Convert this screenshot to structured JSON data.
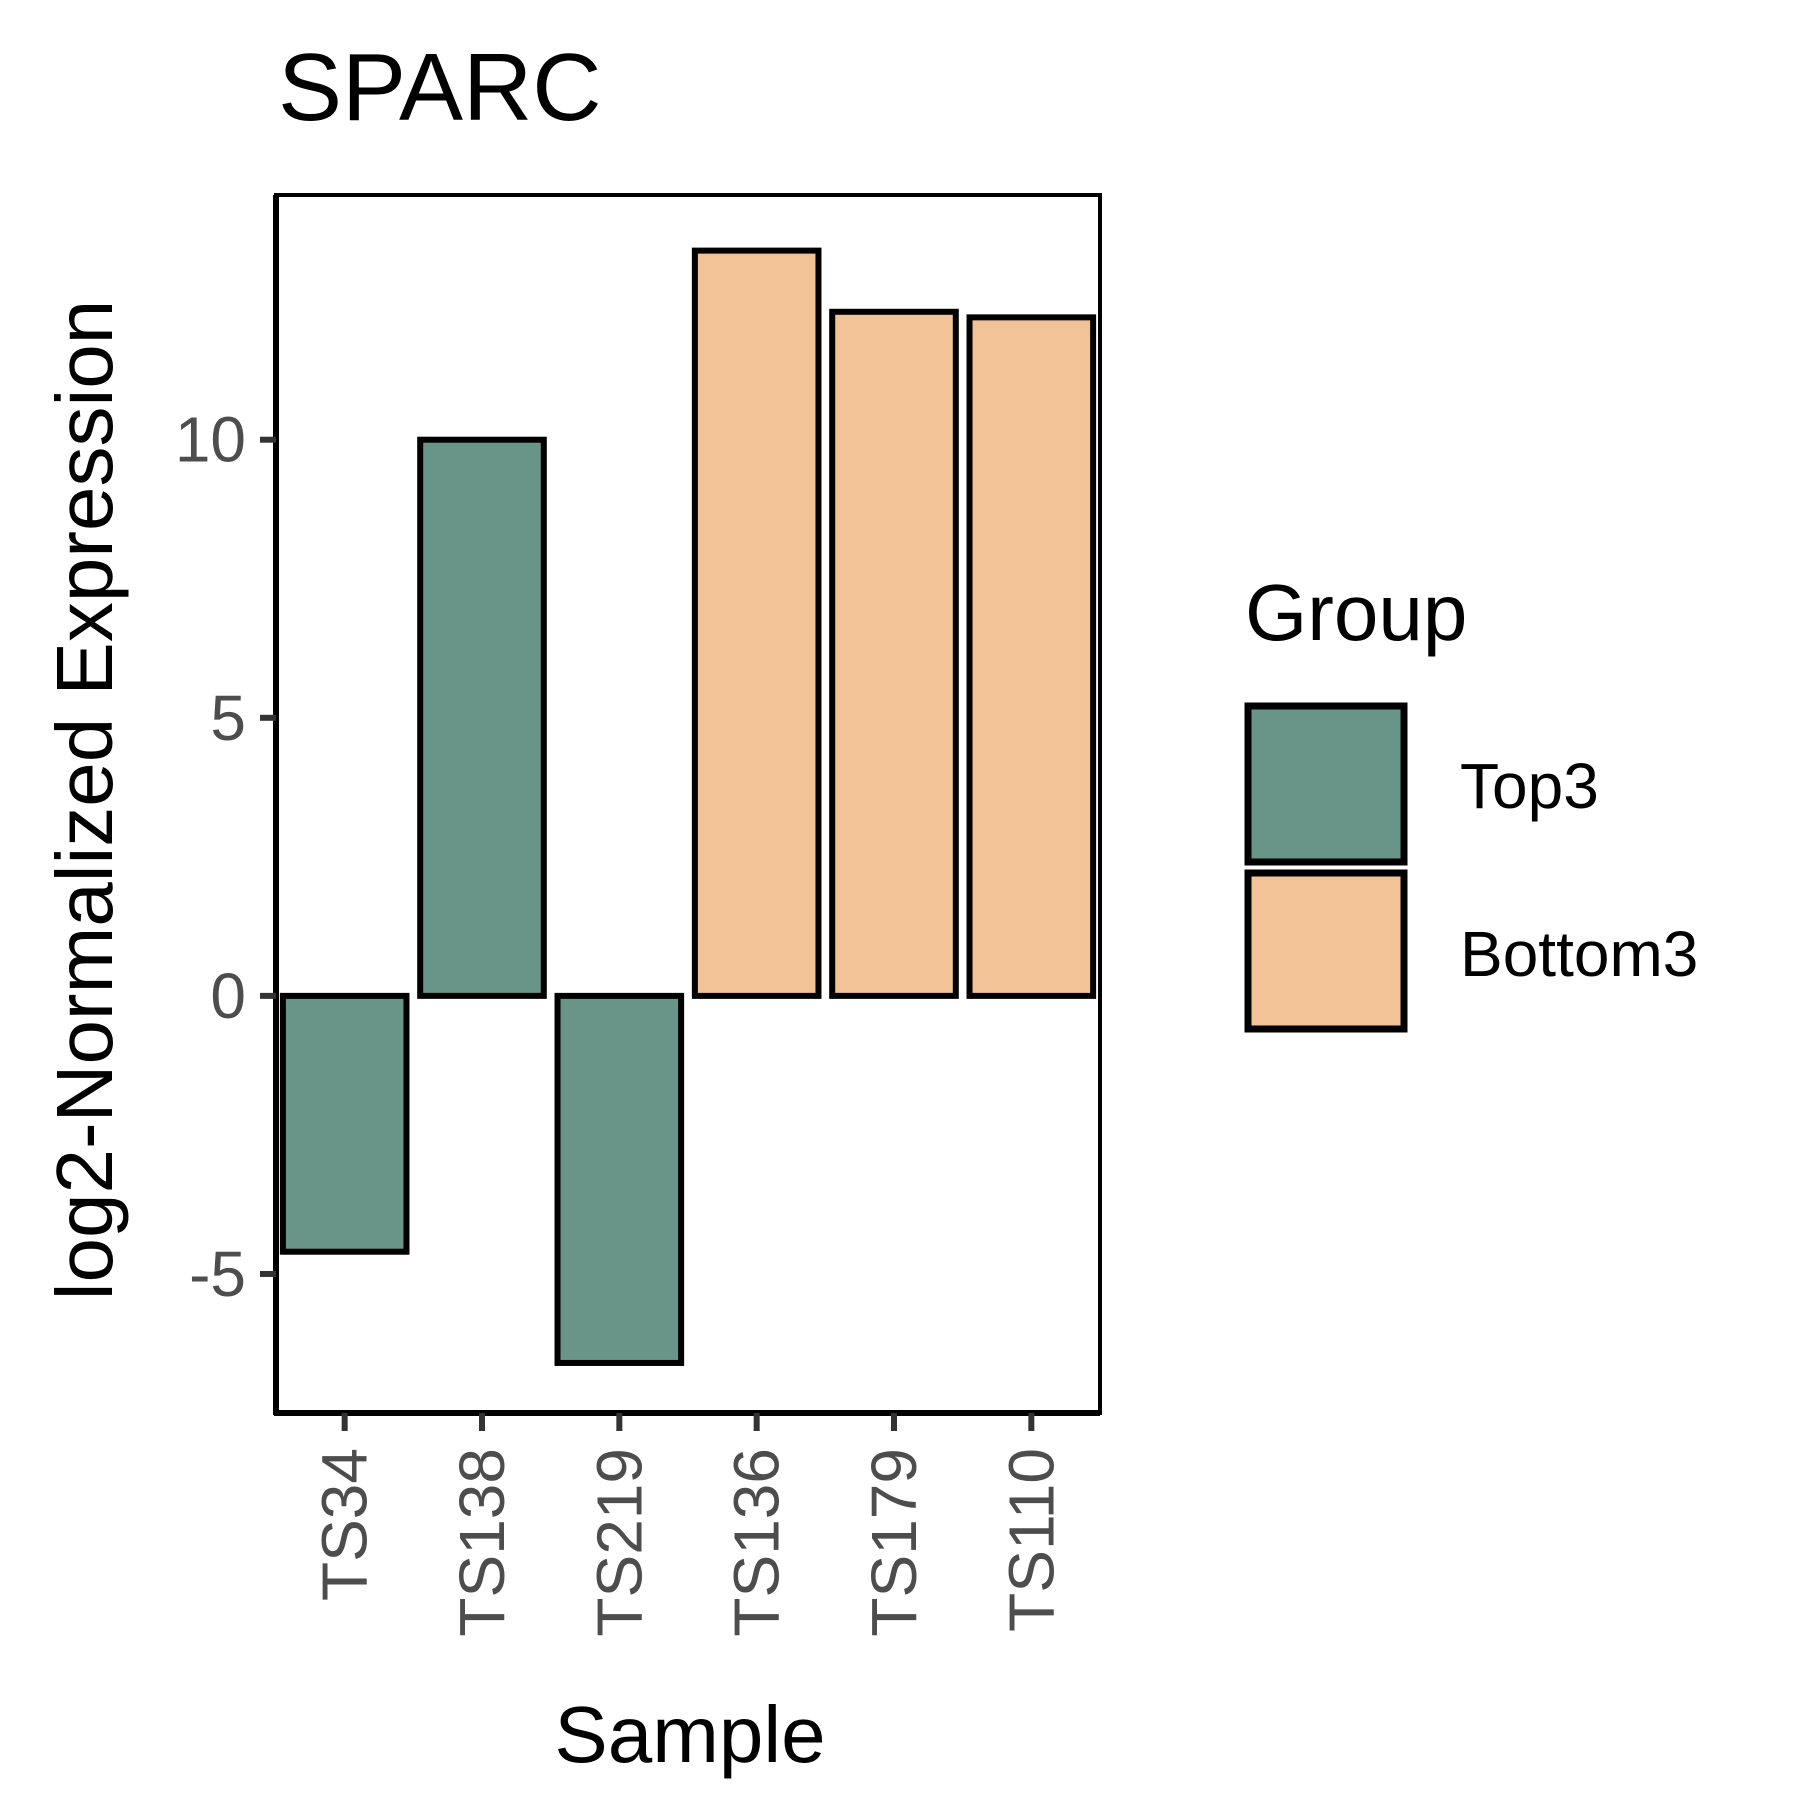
{
  "chart_data": {
    "type": "bar",
    "title": "SPARC",
    "xlabel": "Sample",
    "ylabel": "log2-Normalized Expression",
    "categories": [
      "TS34",
      "TS138",
      "TS219",
      "TS136",
      "TS179",
      "TS110"
    ],
    "values": [
      -4.6,
      10.0,
      -6.6,
      13.4,
      12.3,
      12.2
    ],
    "groups": [
      "Top3",
      "Top3",
      "Top3",
      "Bottom3",
      "Bottom3",
      "Bottom3"
    ],
    "yticks": [
      -5,
      0,
      5,
      10
    ],
    "ytick_labels": [
      "-5",
      "0",
      "5",
      "10"
    ],
    "ylim": [
      -7.5,
      14.4
    ],
    "grid": false,
    "legend": {
      "title": "Group",
      "position": "right",
      "items": [
        {
          "label": "Top3",
          "color": "#699488"
        },
        {
          "label": "Bottom3",
          "color": "#f3c398"
        }
      ]
    },
    "colors": {
      "Top3": "#699488",
      "Bottom3": "#f3c398",
      "outline": "#000000"
    }
  }
}
